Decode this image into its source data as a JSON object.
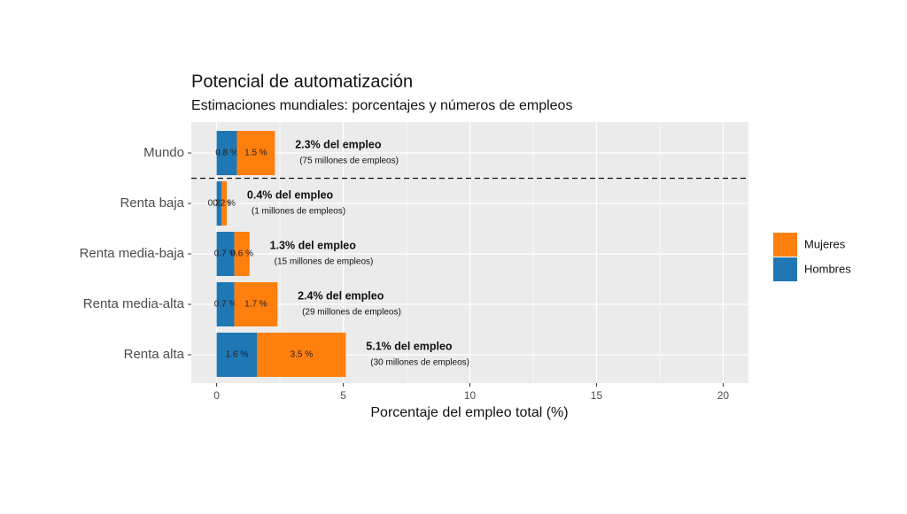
{
  "chart_data": {
    "type": "stacked-barh",
    "title": "Potencial de automatización",
    "subtitle": "Estimaciones mundiales: porcentajes y números de empleos",
    "x_label": "Porcentaje del empleo total (%)",
    "categories": [
      "Mundo",
      "Renta baja",
      "Renta media-baja",
      "Renta media-alta",
      "Renta alta"
    ],
    "series": [
      {
        "name": "Hombres",
        "color": "#1f77b4",
        "values": [
          0.8,
          0.2,
          0.7,
          0.7,
          1.6
        ],
        "value_labels": [
          "0.8 %",
          "0.2 %",
          "0.7 %",
          "0.7 %",
          "1.6 %"
        ]
      },
      {
        "name": "Mujeres",
        "color": "#ff7f0e",
        "values": [
          1.5,
          0.2,
          0.6,
          1.7,
          3.5
        ],
        "value_labels": [
          "1.5 %",
          "0.2 %",
          "0.6 %",
          "1.7 %",
          "3.5 %"
        ]
      }
    ],
    "annotations": [
      {
        "text": "2.3% del empleo",
        "detail": "(75 millones de empleos)"
      },
      {
        "text": "0.4% del empleo",
        "detail": "(1 millones de empleos)"
      },
      {
        "text": "1.3% del empleo",
        "detail": "(15 millones de empleos)"
      },
      {
        "text": "2.4% del empleo",
        "detail": "(29 millones de empleos)"
      },
      {
        "text": "5.1% del empleo",
        "detail": "(30 millones de empleos)"
      }
    ],
    "xlim": [
      -1,
      21
    ],
    "xticks": [
      0,
      5,
      10,
      15,
      20
    ],
    "x_minor_ticks": [
      2.5,
      7.5,
      12.5,
      17.5
    ],
    "grid": true
  }
}
